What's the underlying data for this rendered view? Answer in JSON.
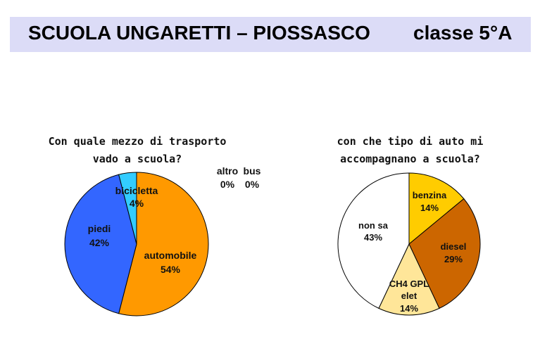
{
  "header": {
    "title": "SCUOLA UNGARETTI – PIOSSASCO",
    "class_label": "classe 5°A"
  },
  "chart_data": [
    {
      "type": "pie",
      "title_lines": [
        "Con quale mezzo di trasporto",
        "vado a scuola?"
      ],
      "slices": [
        {
          "label": "automobile",
          "value": 54,
          "value_label": "54%",
          "color": "#ff9900"
        },
        {
          "label": "piedi",
          "value": 42,
          "value_label": "42%",
          "color": "#3366ff"
        },
        {
          "label": "bicicletta",
          "value": 4,
          "value_label": "4%",
          "color": "#33ccff"
        },
        {
          "label": "altro",
          "value": 0,
          "value_label": "0%",
          "color": "#ffffff"
        },
        {
          "label": "bus",
          "value": 0,
          "value_label": "0%",
          "color": "#ffffff"
        }
      ]
    },
    {
      "type": "pie",
      "title_lines": [
        "con che tipo di auto mi",
        "accompagnano a scuola?"
      ],
      "slices": [
        {
          "label": "benzina",
          "value": 14,
          "value_label": "14%",
          "color": "#ffcc00"
        },
        {
          "label": "diesel",
          "value": 29,
          "value_label": "29%",
          "color": "#cc6600"
        },
        {
          "label_lines": [
            "CH4 GPL",
            "elet"
          ],
          "value": 14,
          "value_label": "14%",
          "color": "#ffe699"
        },
        {
          "label_lines": [
            "non sa"
          ],
          "value": 43,
          "value_label": "43%",
          "color": "#ffffff"
        }
      ]
    }
  ]
}
